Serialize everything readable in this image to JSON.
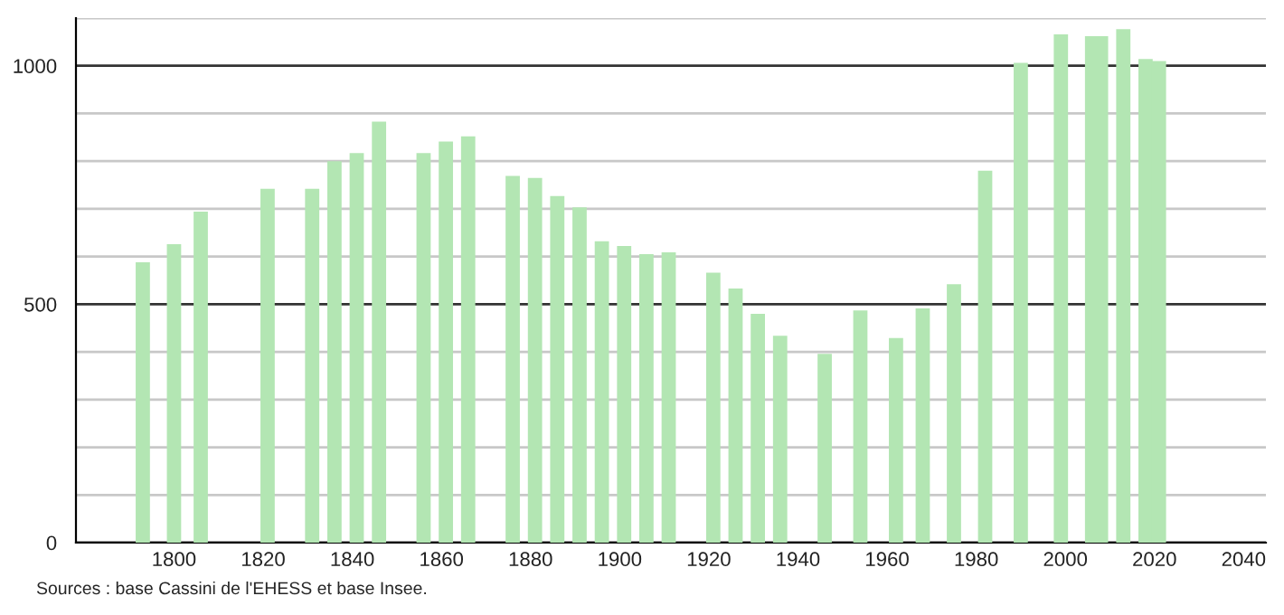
{
  "chart_data": {
    "type": "bar",
    "color": "#b3e6b3",
    "x": [
      1793,
      1800,
      1806,
      1821,
      1831,
      1836,
      1841,
      1846,
      1856,
      1861,
      1866,
      1876,
      1881,
      1886,
      1891,
      1896,
      1901,
      1906,
      1911,
      1921,
      1926,
      1931,
      1936,
      1946,
      1954,
      1962,
      1968,
      1975,
      1982,
      1990,
      1999,
      2006,
      2008,
      2013,
      2018,
      2021
    ],
    "values": [
      588,
      626,
      694,
      742,
      742,
      800,
      817,
      883,
      817,
      841,
      852,
      769,
      765,
      727,
      703,
      632,
      622,
      605,
      609,
      566,
      533,
      480,
      434,
      396,
      487,
      429,
      491,
      542,
      780,
      1006,
      1066,
      1062,
      1062,
      1077,
      1014,
      1010
    ],
    "xlim": [
      1778,
      2045
    ],
    "xticks": [
      1800,
      1820,
      1840,
      1860,
      1880,
      1900,
      1920,
      1940,
      1960,
      1980,
      2000,
      2020,
      2040
    ],
    "ylim": [
      0,
      1100
    ],
    "yticks": [
      0,
      {
        "value": 100,
        "label": null
      },
      {
        "value": 200,
        "label": null
      },
      {
        "value": 300,
        "label": null
      },
      {
        "value": 400,
        "label": null
      },
      500,
      {
        "value": 600,
        "label": null
      },
      {
        "value": 700,
        "label": null
      },
      {
        "value": 800,
        "label": null
      },
      {
        "value": 900,
        "label": null
      },
      1000,
      {
        "value": 1100,
        "label": null
      }
    ],
    "grid": "y",
    "annotations": [
      "Sources : base Cassini de l'EHESS et base Insee."
    ]
  }
}
